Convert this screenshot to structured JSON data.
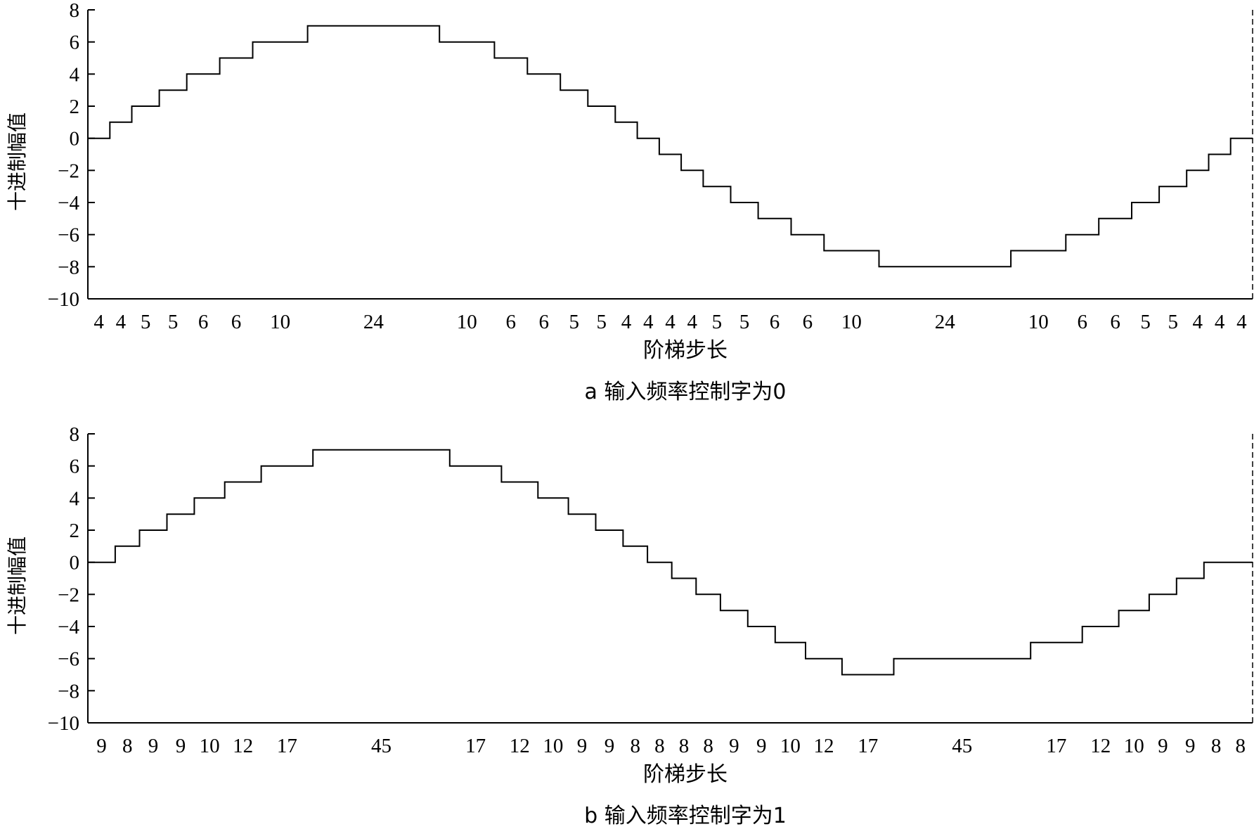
{
  "chart_data": [
    {
      "type": "line",
      "ylabel": "十进制幅值",
      "xlabel": "阶梯步长",
      "caption": "a 输入频率控制字为0",
      "ylim": [
        -10,
        8
      ],
      "yticks": [
        "8",
        "6",
        "4",
        "2",
        "0",
        "−2",
        "−4",
        "−6",
        "−8",
        "−10"
      ],
      "step_lengths": [
        4,
        4,
        5,
        5,
        6,
        6,
        10,
        24,
        10,
        6,
        6,
        5,
        5,
        4,
        4,
        4,
        4,
        5,
        5,
        6,
        6,
        10,
        24,
        10,
        6,
        6,
        5,
        5,
        4,
        4,
        4
      ],
      "step_lengths_text": [
        "4",
        "4",
        "5",
        "5",
        "6",
        "6",
        "10",
        "24",
        "10",
        "6",
        "6",
        "5",
        "5",
        "4",
        "4",
        "4",
        "4",
        "5",
        "5",
        "6",
        "6",
        "10",
        "24",
        "10",
        "6",
        "6",
        "5",
        "5",
        "4",
        "4",
        "4"
      ],
      "step_values": [
        0,
        1,
        2,
        3,
        4,
        5,
        6,
        7,
        6,
        5,
        4,
        3,
        2,
        1,
        0,
        -1,
        -2,
        -3,
        -4,
        -5,
        -6,
        -7,
        -8,
        -7,
        -6,
        -5,
        -4,
        -3,
        -2,
        -1,
        0
      ]
    },
    {
      "type": "line",
      "ylabel": "十进制幅值",
      "xlabel": "阶梯步长",
      "caption": "b 输入频率控制字为1",
      "ylim": [
        -10,
        8
      ],
      "yticks": [
        "8",
        "6",
        "4",
        "2",
        "0",
        "−2",
        "−4",
        "−6",
        "−8",
        "−10"
      ],
      "step_lengths": [
        9,
        8,
        9,
        9,
        10,
        12,
        17,
        45,
        17,
        12,
        10,
        9,
        9,
        8,
        8,
        8,
        8,
        9,
        9,
        10,
        12,
        17,
        45,
        17,
        12,
        10,
        9,
        9,
        8,
        8
      ],
      "step_lengths_text": [
        "9",
        "8",
        "9",
        "9",
        "10",
        "12",
        "17",
        "45",
        "17",
        "12",
        "10",
        "9",
        "9",
        "8",
        "8",
        "8",
        "8",
        "9",
        "9",
        "10",
        "12",
        "17",
        "45",
        "17",
        "12",
        "10",
        "9",
        "9",
        "8",
        "8"
      ],
      "step_values": [
        0,
        1,
        2,
        3,
        4,
        5,
        6,
        7,
        6,
        5,
        4,
        3,
        2,
        1,
        0,
        -1,
        -2,
        -3,
        -4,
        -5,
        -6,
        -7,
        -6,
        -5,
        -4,
        -3,
        -2,
        -1,
        0,
        0
      ]
    }
  ]
}
